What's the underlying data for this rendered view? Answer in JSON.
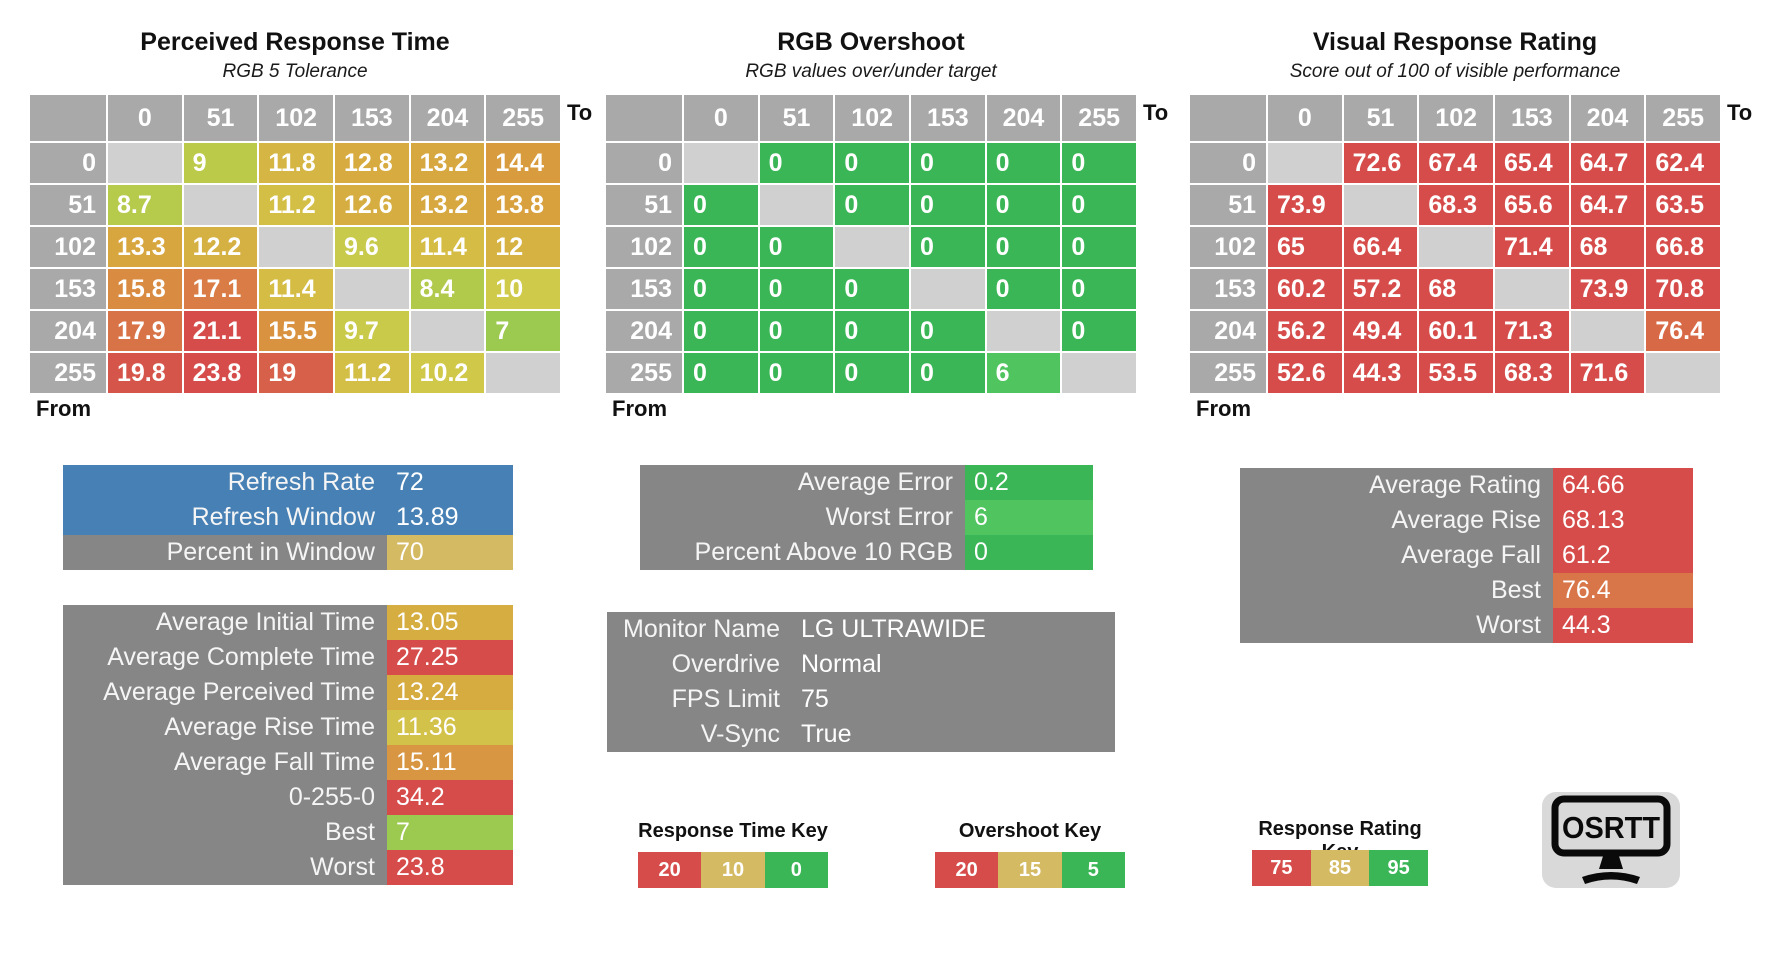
{
  "chart_data": [
    {
      "type": "heatmap",
      "title": "Perceived Response Time",
      "subtitle": "RGB 5 Tolerance",
      "x_axis_label": "To",
      "y_axis_label": "From",
      "x_labels": [
        "0",
        "51",
        "102",
        "153",
        "204",
        "255"
      ],
      "y_labels": [
        "0",
        "51",
        "102",
        "153",
        "204",
        "255"
      ],
      "values": [
        [
          null,
          9,
          11.8,
          12.8,
          13.2,
          14.4
        ],
        [
          8.7,
          null,
          11.2,
          12.6,
          13.2,
          13.8
        ],
        [
          13.3,
          12.2,
          null,
          9.6,
          11.4,
          12
        ],
        [
          15.8,
          17.1,
          11.4,
          null,
          8.4,
          10
        ],
        [
          17.9,
          21.1,
          15.5,
          9.7,
          null,
          7
        ],
        [
          19.8,
          23.8,
          19,
          11.2,
          10.2,
          null
        ]
      ],
      "scale": "time"
    },
    {
      "type": "heatmap",
      "title": "RGB Overshoot",
      "subtitle": "RGB values over/under target",
      "x_axis_label": "To",
      "y_axis_label": "From",
      "x_labels": [
        "0",
        "51",
        "102",
        "153",
        "204",
        "255"
      ],
      "y_labels": [
        "0",
        "51",
        "102",
        "153",
        "204",
        "255"
      ],
      "values": [
        [
          null,
          0,
          0,
          0,
          0,
          0
        ],
        [
          0,
          null,
          0,
          0,
          0,
          0
        ],
        [
          0,
          0,
          null,
          0,
          0,
          0
        ],
        [
          0,
          0,
          0,
          null,
          0,
          0
        ],
        [
          0,
          0,
          0,
          0,
          null,
          0
        ],
        [
          0,
          0,
          0,
          0,
          6,
          null
        ]
      ],
      "scale": "overshoot"
    },
    {
      "type": "heatmap",
      "title": "Visual Response Rating",
      "subtitle": "Score out of 100 of visible performance",
      "x_axis_label": "To",
      "y_axis_label": "From",
      "x_labels": [
        "0",
        "51",
        "102",
        "153",
        "204",
        "255"
      ],
      "y_labels": [
        "0",
        "51",
        "102",
        "153",
        "204",
        "255"
      ],
      "values": [
        [
          null,
          72.6,
          67.4,
          65.4,
          64.7,
          62.4
        ],
        [
          73.9,
          null,
          68.3,
          65.6,
          64.7,
          63.5
        ],
        [
          65,
          66.4,
          null,
          71.4,
          68,
          66.8
        ],
        [
          60.2,
          57.2,
          68,
          null,
          73.9,
          70.8
        ],
        [
          56.2,
          49.4,
          60.1,
          71.3,
          null,
          76.4
        ],
        [
          52.6,
          44.3,
          53.5,
          68.3,
          71.6,
          null
        ]
      ],
      "scale": "rating"
    }
  ],
  "scales": {
    "time": [
      [
        0,
        "#3dbc59"
      ],
      [
        5,
        "#84c44f"
      ],
      [
        7,
        "#9cc94f"
      ],
      [
        8.5,
        "#b2ca4b"
      ],
      [
        10,
        "#cfca49"
      ],
      [
        11,
        "#d4c247"
      ],
      [
        12,
        "#d5b242"
      ],
      [
        13,
        "#d7a940"
      ],
      [
        14,
        "#d89f3e"
      ],
      [
        15.5,
        "#d9923f"
      ],
      [
        16,
        "#d98843"
      ],
      [
        17.5,
        "#d97846"
      ],
      [
        19,
        "#d7604a"
      ],
      [
        20.5,
        "#d64c4a"
      ],
      [
        60,
        "#d64c4a"
      ]
    ],
    "overshoot": [
      [
        0,
        "#3ab656"
      ],
      [
        6,
        "#4fc45f"
      ],
      [
        10,
        "#8cc95b"
      ],
      [
        15,
        "#d5ba64"
      ],
      [
        20,
        "#d64c4a"
      ],
      [
        100,
        "#d64c4a"
      ]
    ],
    "rating": [
      [
        0,
        "#d64c4a"
      ],
      [
        75,
        "#d64c4a"
      ],
      [
        78,
        "#db8a41"
      ],
      [
        85,
        "#d5ba64"
      ],
      [
        90,
        "#93c75a"
      ],
      [
        95,
        "#3bb656"
      ],
      [
        100,
        "#3bb656"
      ]
    ]
  },
  "diagonal_color": "#d0d0d0",
  "header_color": "#a9a9a9",
  "panel_gray": "#868686",
  "panel_blue": "#4680b4",
  "panels": {
    "refresh": {
      "rows": [
        {
          "label": "Refresh Rate",
          "value": "72",
          "row_bg": "#4680b4"
        },
        {
          "label": "Refresh Window",
          "value": "13.89",
          "row_bg": "#4680b4"
        },
        {
          "label": "Percent in Window",
          "value": "70",
          "value_bg": "#d5ba64"
        }
      ]
    },
    "times": {
      "rows": [
        {
          "label": "Average Initial Time",
          "value": "13.05",
          "value_bg": "#d6ad41"
        },
        {
          "label": "Average Complete Time",
          "value": "27.25",
          "value_bg": "#d64c4a"
        },
        {
          "label": "Average Perceived Time",
          "value": "13.24",
          "value_bg": "#d6ab40"
        },
        {
          "label": "Average Rise Time",
          "value": "11.36",
          "value_bg": "#d3c24a"
        },
        {
          "label": "Average Fall Time",
          "value": "15.11",
          "value_bg": "#d99642"
        },
        {
          "label": "0-255-0",
          "value": "34.2",
          "value_bg": "#d64c4a"
        },
        {
          "label": "Best",
          "value": "7",
          "value_bg": "#9cc94f"
        },
        {
          "label": "Worst",
          "value": "23.8",
          "value_bg": "#d64c4a"
        }
      ]
    },
    "errors": {
      "rows": [
        {
          "label": "Average Error",
          "value": "0.2",
          "value_bg": "#3bb657"
        },
        {
          "label": "Worst Error",
          "value": "6",
          "value_bg": "#4fc45f"
        },
        {
          "label": "Percent Above 10 RGB",
          "value": "0",
          "value_bg": "#3bb657"
        }
      ]
    },
    "monitor": {
      "rows": [
        {
          "label": "Monitor Name",
          "value": "LG ULTRAWIDE"
        },
        {
          "label": "Overdrive",
          "value": "Normal"
        },
        {
          "label": "FPS Limit",
          "value": "75"
        },
        {
          "label": "V-Sync",
          "value": "True"
        }
      ]
    },
    "ratings": {
      "rows": [
        {
          "label": "Average Rating",
          "value": "64.66",
          "value_bg": "#d64c4a"
        },
        {
          "label": "Average Rise",
          "value": "68.13",
          "value_bg": "#d64c4a"
        },
        {
          "label": "Average Fall",
          "value": "61.2",
          "value_bg": "#d64c4a"
        },
        {
          "label": "Best",
          "value": "76.4",
          "value_bg": "#d8764a"
        },
        {
          "label": "Worst",
          "value": "44.3",
          "value_bg": "#d64c4a"
        }
      ]
    }
  },
  "keys": [
    {
      "title": "Response Time Key",
      "segments": [
        {
          "label": "20",
          "color": "#d64c4a"
        },
        {
          "label": "10",
          "color": "#d5ba64"
        },
        {
          "label": "0",
          "color": "#3bb657"
        }
      ]
    },
    {
      "title": "Overshoot Key",
      "segments": [
        {
          "label": "20",
          "color": "#d64c4a"
        },
        {
          "label": "15",
          "color": "#d5ba64"
        },
        {
          "label": "5",
          "color": "#3bb657"
        }
      ]
    },
    {
      "title": "Response Rating Key",
      "segments": [
        {
          "label": "75",
          "color": "#d64c4a"
        },
        {
          "label": "85",
          "color": "#d5ba64"
        },
        {
          "label": "95",
          "color": "#3bb657"
        }
      ]
    }
  ],
  "logo": {
    "text": "OSRTT"
  }
}
